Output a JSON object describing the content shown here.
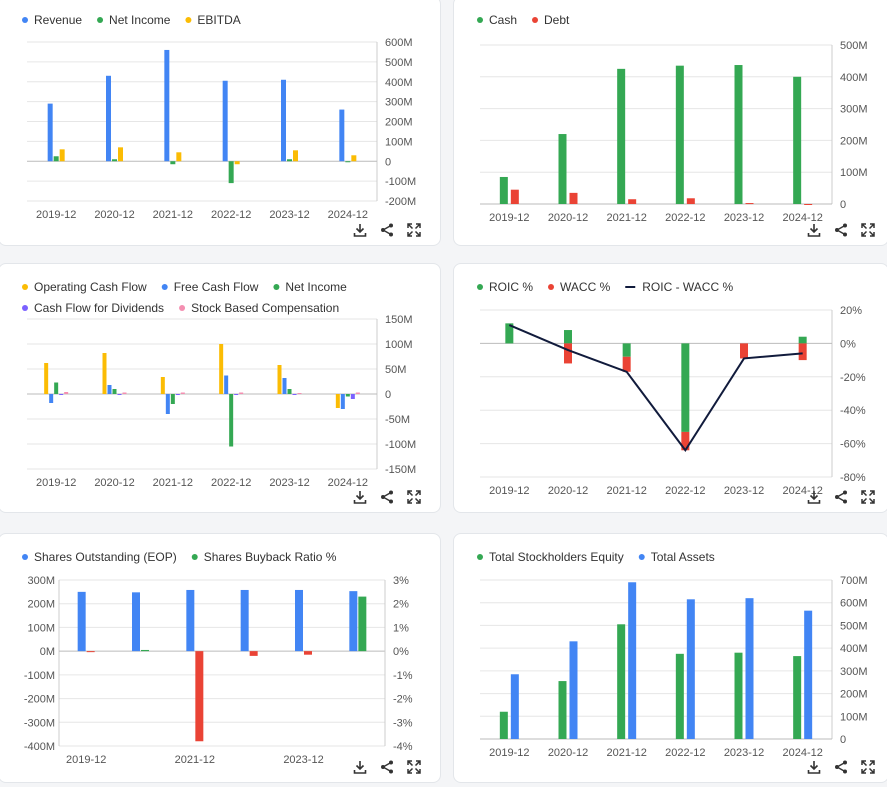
{
  "colors": {
    "blue": "#4285f4",
    "green": "#34a853",
    "yellow": "#fbbc04",
    "red": "#ea4335",
    "purple": "#7b61ff",
    "pink": "#f48fb1",
    "navy": "#111b3c",
    "axis": "#555",
    "grid": "#e6e6e6"
  },
  "tools": {
    "download": "download-icon",
    "share": "share-icon",
    "expand": "expand-icon"
  },
  "charts": [
    {
      "id": "income",
      "type": "bar",
      "legend": [
        {
          "label": "Revenue",
          "color": "blue"
        },
        {
          "label": "Net Income",
          "color": "green"
        },
        {
          "label": "EBITDA",
          "color": "yellow"
        }
      ],
      "categories": [
        "2019-12",
        "2020-12",
        "2021-12",
        "2022-12",
        "2023-12",
        "2024-12"
      ],
      "series": [
        {
          "name": "Revenue",
          "color": "blue",
          "values": [
            290,
            430,
            560,
            405,
            410,
            260
          ]
        },
        {
          "name": "Net Income",
          "color": "green",
          "values": [
            25,
            10,
            -15,
            -110,
            10,
            -3
          ]
        },
        {
          "name": "EBITDA",
          "color": "yellow",
          "values": [
            60,
            70,
            45,
            -15,
            55,
            30
          ]
        }
      ],
      "ylim": [
        -200,
        600
      ],
      "yticks": [
        {
          "v": 600,
          "t": "600M"
        },
        {
          "v": 500,
          "t": "500M"
        },
        {
          "v": 400,
          "t": "400M"
        },
        {
          "v": 300,
          "t": "300M"
        },
        {
          "v": 200,
          "t": "200M"
        },
        {
          "v": 100,
          "t": "100M"
        },
        {
          "v": 0,
          "t": "0"
        },
        {
          "v": -100,
          "t": "-100M"
        },
        {
          "v": -200,
          "t": "-200M"
        }
      ],
      "xticks": [
        "2019-12",
        "2020-12",
        "2021-12",
        "2022-12",
        "2023-12",
        "2024-12"
      ]
    },
    {
      "id": "cashdebt",
      "type": "bar",
      "legend": [
        {
          "label": "Cash",
          "color": "green"
        },
        {
          "label": "Debt",
          "color": "red"
        }
      ],
      "categories": [
        "2019-12",
        "2020-12",
        "2021-12",
        "2022-12",
        "2023-12",
        "2024-12"
      ],
      "series": [
        {
          "name": "Cash",
          "color": "green",
          "values": [
            85,
            220,
            425,
            435,
            437,
            400
          ]
        },
        {
          "name": "Debt",
          "color": "red",
          "values": [
            45,
            35,
            15,
            18,
            3,
            0
          ]
        }
      ],
      "ylim": [
        0,
        500
      ],
      "yticks": [
        {
          "v": 500,
          "t": "500M"
        },
        {
          "v": 400,
          "t": "400M"
        },
        {
          "v": 300,
          "t": "300M"
        },
        {
          "v": 200,
          "t": "200M"
        },
        {
          "v": 100,
          "t": "100M"
        },
        {
          "v": 0,
          "t": "0"
        }
      ],
      "xticks": [
        "2019-12",
        "2020-12",
        "2021-12",
        "2022-12",
        "2023-12",
        "2024-12"
      ]
    },
    {
      "id": "cashflow",
      "type": "bar",
      "legend": [
        {
          "label": "Operating Cash Flow",
          "color": "yellow"
        },
        {
          "label": "Free Cash Flow",
          "color": "blue"
        },
        {
          "label": "Net Income",
          "color": "green"
        },
        {
          "label": "Cash Flow for Dividends",
          "color": "purple"
        },
        {
          "label": "Stock Based Compensation",
          "color": "pink"
        }
      ],
      "categories": [
        "2019-12",
        "2020-12",
        "2021-12",
        "2022-12",
        "2023-12",
        "2024-12"
      ],
      "series": [
        {
          "name": "Operating Cash Flow",
          "color": "yellow",
          "values": [
            62,
            82,
            34,
            100,
            58,
            -28
          ]
        },
        {
          "name": "Free Cash Flow",
          "color": "blue",
          "values": [
            -18,
            18,
            -40,
            37,
            32,
            -30
          ]
        },
        {
          "name": "Net Income",
          "color": "green",
          "values": [
            23,
            10,
            -20,
            -105,
            10,
            -5
          ]
        },
        {
          "name": "Cash Flow for Dividends",
          "color": "purple",
          "values": [
            0,
            0,
            0,
            0,
            0,
            -10
          ]
        },
        {
          "name": "Stock Based Compensation",
          "color": "pink",
          "values": [
            4,
            3,
            3,
            3,
            2,
            3
          ]
        }
      ],
      "ylim": [
        -150,
        150
      ],
      "yticks": [
        {
          "v": 150,
          "t": "150M"
        },
        {
          "v": 100,
          "t": "100M"
        },
        {
          "v": 50,
          "t": "50M"
        },
        {
          "v": 0,
          "t": "0"
        },
        {
          "v": -50,
          "t": "-50M"
        },
        {
          "v": -100,
          "t": "-100M"
        },
        {
          "v": -150,
          "t": "-150M"
        }
      ],
      "xticks": [
        "2019-12",
        "2020-12",
        "2021-12",
        "2022-12",
        "2023-12",
        "2024-12"
      ]
    },
    {
      "id": "roic",
      "type": "bar+line",
      "legend": [
        {
          "label": "ROIC %",
          "color": "green"
        },
        {
          "label": "WACC %",
          "color": "red"
        },
        {
          "label": "ROIC - WACC %",
          "color": "navy",
          "line": true
        }
      ],
      "categories": [
        "2019-12",
        "2020-12",
        "2021-12",
        "2022-12",
        "2023-12",
        "2024-12"
      ],
      "series": [
        {
          "name": "ROIC %",
          "color": "green",
          "stack": true,
          "values": [
            12,
            8,
            -8,
            -53,
            0,
            4
          ]
        },
        {
          "name": "WACC %",
          "color": "red",
          "stack": true,
          "values": [
            0,
            -12,
            -9,
            -11,
            -9,
            -10
          ]
        }
      ],
      "line": {
        "name": "ROIC - WACC %",
        "color": "navy",
        "values": [
          11,
          -4,
          -17,
          -64,
          -9,
          -6
        ]
      },
      "ylim": [
        -80,
        20
      ],
      "yticks": [
        {
          "v": 20,
          "t": "20%"
        },
        {
          "v": 0,
          "t": "0%"
        },
        {
          "v": -20,
          "t": "-20%"
        },
        {
          "v": -40,
          "t": "-40%"
        },
        {
          "v": -60,
          "t": "-60%"
        },
        {
          "v": -80,
          "t": "-80%"
        }
      ],
      "xticks": [
        "2019-12",
        "2020-12",
        "2021-12",
        "2022-12",
        "2023-12",
        "2024-12"
      ]
    },
    {
      "id": "shares",
      "type": "bar-dual",
      "legend": [
        {
          "label": "Shares Outstanding (EOP)",
          "color": "blue"
        },
        {
          "label": "Shares Buyback Ratio %",
          "color": "green"
        }
      ],
      "categories": [
        "2019-12",
        "2020-12",
        "2021-12",
        "2022-12",
        "2023-12",
        "2024-12"
      ],
      "series": [
        {
          "name": "Shares Outstanding (EOP)",
          "color": "blue",
          "axis": "left",
          "values": [
            250,
            248,
            258,
            258,
            258,
            253
          ]
        },
        {
          "name": "Shares Buyback Ratio %",
          "color": "green",
          "axis": "right",
          "values": [
            -0.02,
            0.05,
            -3.8,
            -0.2,
            -0.15,
            2.3
          ]
        }
      ],
      "negColor": "red",
      "ylim": [
        -400,
        300
      ],
      "y2lim": [
        -4,
        3
      ],
      "yticks": [
        {
          "v": 300,
          "t": "300M"
        },
        {
          "v": 200,
          "t": "200M"
        },
        {
          "v": 100,
          "t": "100M"
        },
        {
          "v": 0,
          "t": "0M"
        },
        {
          "v": -100,
          "t": "-100M"
        },
        {
          "v": -200,
          "t": "-200M"
        },
        {
          "v": -300,
          "t": "-300M"
        },
        {
          "v": -400,
          "t": "-400M"
        }
      ],
      "y2ticks": [
        {
          "v": 3,
          "t": "3%"
        },
        {
          "v": 2,
          "t": "2%"
        },
        {
          "v": 1,
          "t": "1%"
        },
        {
          "v": 0,
          "t": "0%"
        },
        {
          "v": -1,
          "t": "-1%"
        },
        {
          "v": -2,
          "t": "-2%"
        },
        {
          "v": -3,
          "t": "-3%"
        },
        {
          "v": -4,
          "t": "-4%"
        }
      ],
      "xticks": [
        "2019-12",
        "",
        "2021-12",
        "",
        "2023-12",
        ""
      ]
    },
    {
      "id": "equity",
      "type": "bar",
      "legend": [
        {
          "label": "Total Stockholders Equity",
          "color": "green"
        },
        {
          "label": "Total Assets",
          "color": "blue"
        }
      ],
      "categories": [
        "2019-12",
        "2020-12",
        "2021-12",
        "2022-12",
        "2023-12",
        "2024-12"
      ],
      "series": [
        {
          "name": "Total Stockholders Equity",
          "color": "green",
          "values": [
            120,
            255,
            505,
            375,
            380,
            365
          ]
        },
        {
          "name": "Total Assets",
          "color": "blue",
          "values": [
            285,
            430,
            690,
            615,
            620,
            565
          ]
        }
      ],
      "ylim": [
        0,
        700
      ],
      "yticks": [
        {
          "v": 700,
          "t": "700M"
        },
        {
          "v": 600,
          "t": "600M"
        },
        {
          "v": 500,
          "t": "500M"
        },
        {
          "v": 400,
          "t": "400M"
        },
        {
          "v": 300,
          "t": "300M"
        },
        {
          "v": 200,
          "t": "200M"
        },
        {
          "v": 100,
          "t": "100M"
        },
        {
          "v": 0,
          "t": "0"
        }
      ],
      "xticks": [
        "2019-12",
        "2020-12",
        "2021-12",
        "2022-12",
        "2023-12",
        "2024-12"
      ]
    }
  ]
}
